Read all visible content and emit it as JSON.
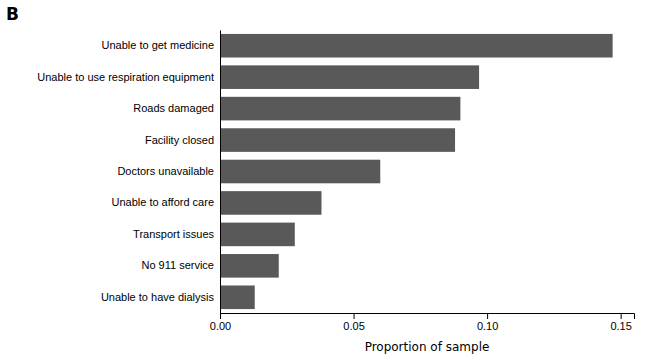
{
  "chart_data": {
    "type": "bar",
    "orientation": "horizontal",
    "title": "B",
    "categories": [
      "Unable to have dialysis",
      "No 911 service",
      "Transport issues",
      "Unable to afford care",
      "Doctors unavailable",
      "Facility closed",
      "Roads damaged",
      "Unable to use respiration equipment",
      "Unable to get medicine"
    ],
    "values": [
      0.013,
      0.022,
      0.028,
      0.038,
      0.06,
      0.088,
      0.09,
      0.097,
      0.147
    ],
    "color": "#595959",
    "xlabel": "Proportion of sample",
    "xlim": [
      0,
      0.155
    ],
    "xticks": [
      {
        "value": 0,
        "label": "0.00"
      },
      {
        "value": 0.05,
        "label": "0.05"
      },
      {
        "value": 0.1,
        "label": "0.10"
      },
      {
        "value": 0.15,
        "label": "0.15"
      }
    ],
    "grid": false
  }
}
